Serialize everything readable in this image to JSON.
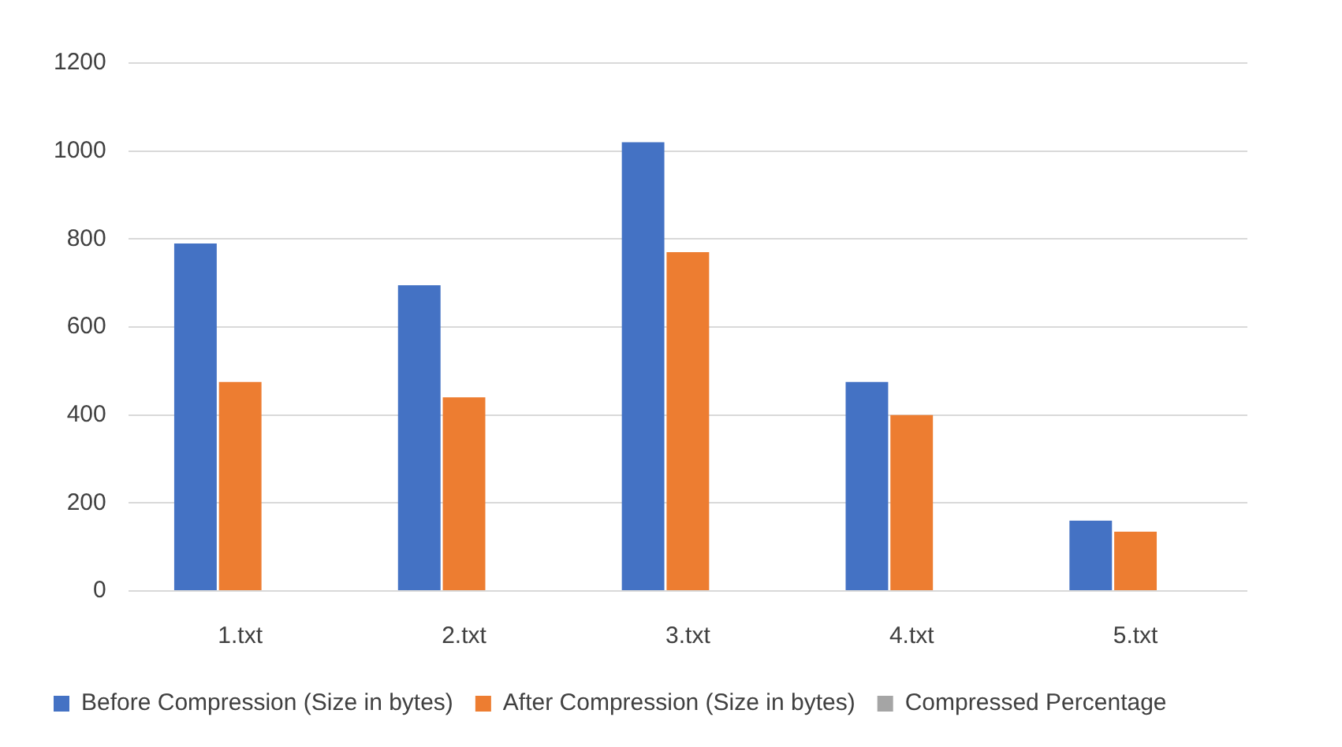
{
  "chart_data": {
    "type": "bar",
    "categories": [
      "1.txt",
      "2.txt",
      "3.txt",
      "4.txt",
      "5.txt"
    ],
    "series": [
      {
        "name": "Before Compression (Size in bytes)",
        "color": "#4472c4",
        "values": [
          790,
          695,
          1020,
          475,
          160
        ]
      },
      {
        "name": "After Compression (Size in bytes)",
        "color": "#ed7d31",
        "values": [
          475,
          440,
          770,
          400,
          135
        ]
      },
      {
        "name": "Compressed Percentage",
        "color": "#a5a5a5",
        "values": [
          0,
          0,
          0,
          0,
          0
        ]
      }
    ],
    "ylim": [
      0,
      1200
    ],
    "yticks": [
      0,
      200,
      400,
      600,
      800,
      1000,
      1200
    ],
    "grid": "y",
    "legend": "bottom"
  }
}
